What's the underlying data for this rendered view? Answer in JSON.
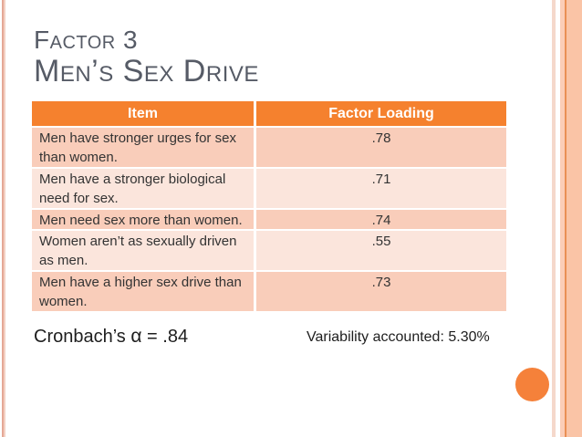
{
  "title": {
    "line1": "Factor 3",
    "line2": "Men’s Sex Drive"
  },
  "table": {
    "header": {
      "item": "Item",
      "loading": "Factor Loading"
    },
    "rows": [
      {
        "item_lines": [
          "Men have stronger urges for sex",
          "than women."
        ],
        "loading": ".78"
      },
      {
        "item_lines": [
          "Men have a stronger biological",
          "need for sex."
        ],
        "loading": ".71"
      },
      {
        "item_lines": [
          "Men need sex more than women."
        ],
        "loading": ".74"
      },
      {
        "item_lines": [
          "Women aren’t as sexually driven",
          "as men."
        ],
        "loading": ".55"
      },
      {
        "item_lines": [
          "Men have a higher sex drive than",
          "women."
        ],
        "loading": ".73"
      }
    ]
  },
  "footer": {
    "cronbach_prefix": "Cronbach’s ",
    "alpha": "α",
    "cronbach_suffix": " = .84",
    "variability": "Variability accounted: 5.30%"
  },
  "colors": {
    "header_bg": "#F5812E",
    "row_odd_bg": "#F9CDBA",
    "row_even_bg": "#FBE5DC",
    "accent_circle": "#F5813A",
    "title_text": "#565B66",
    "body_text": "#333333",
    "edge_band": "#FAC4A6",
    "edge_line_dark": "#E98F55",
    "edge_line_pale": "#F5D8CB",
    "edge_line_light": "#FBCDB7",
    "left_stripe_dark": "#E5A896",
    "left_stripe_light": "#F3D0C3"
  },
  "chart_data": {
    "type": "table",
    "title": "Factor 3 — Men’s Sex Drive",
    "columns": [
      "Item",
      "Factor Loading"
    ],
    "rows": [
      [
        "Men have stronger urges for sex than women.",
        0.78
      ],
      [
        "Men have a stronger biological need for sex.",
        0.71
      ],
      [
        "Men need sex more than women.",
        0.74
      ],
      [
        "Women aren’t as sexually driven as men.",
        0.55
      ],
      [
        "Men have a higher sex drive than women.",
        0.73
      ]
    ],
    "notes": [
      "Cronbach’s α = .84",
      "Variability accounted: 5.30%"
    ]
  }
}
